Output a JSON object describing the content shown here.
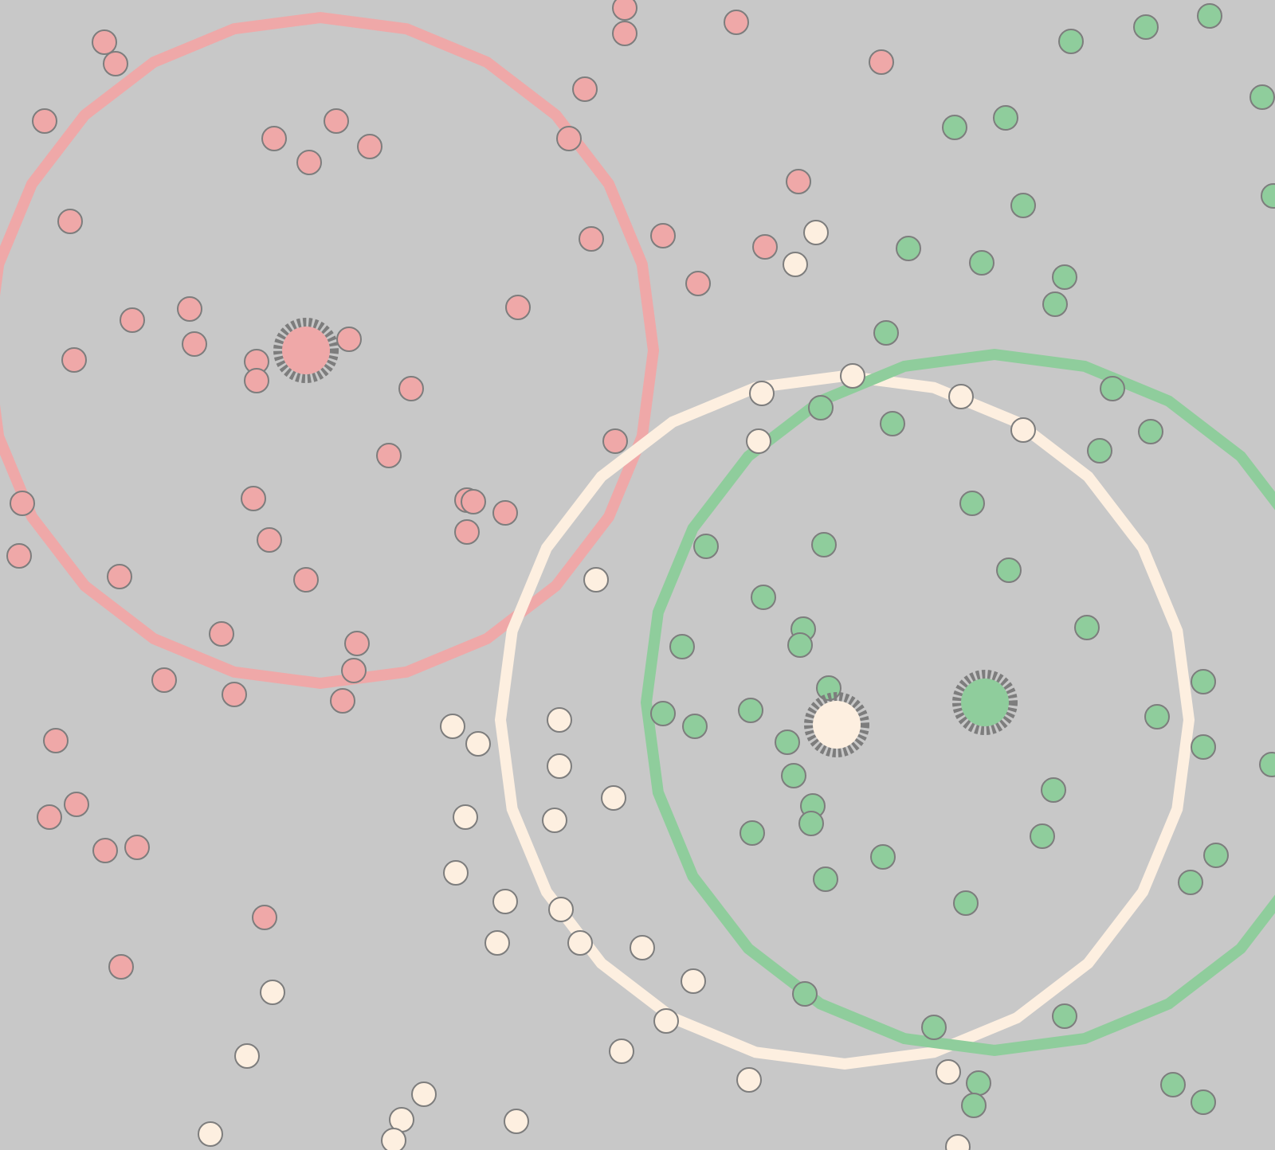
{
  "colors": {
    "background": "#c8c8c8",
    "red": "#efa8a8",
    "green": "#8fcd9c",
    "cream": "#fdefe0",
    "outline": "#7d7d7d"
  },
  "clusters": [
    {
      "name": "red-cluster",
      "color_key": "red"
    },
    {
      "name": "green-cluster",
      "color_key": "green"
    },
    {
      "name": "cream-cluster",
      "color_key": "cream"
    }
  ],
  "point_counts": {
    "red": 71,
    "green": 69,
    "cream": 47
  }
}
